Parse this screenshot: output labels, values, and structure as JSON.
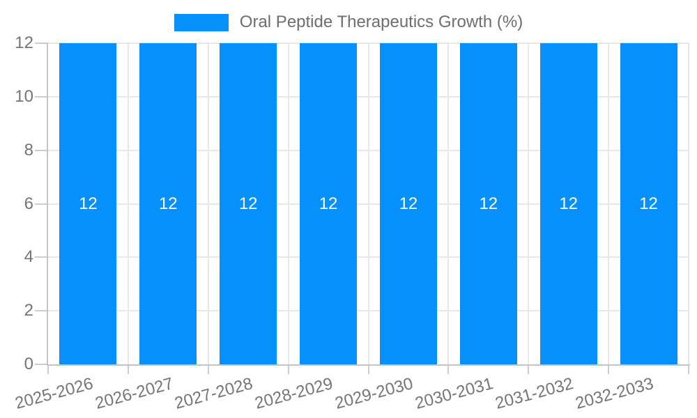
{
  "chart_data": {
    "type": "bar",
    "title": "",
    "xlabel": "",
    "ylabel": "",
    "legend": {
      "label": "Oral Peptide Therapeutics Growth (%)",
      "position": "top"
    },
    "categories": [
      "2025-2026",
      "2026-2027",
      "2027-2028",
      "2028-2029",
      "2029-2030",
      "2030-2031",
      "2031-2032",
      "2032-2033"
    ],
    "values": [
      12,
      12,
      12,
      12,
      12,
      12,
      12,
      12
    ],
    "data_labels": [
      "12",
      "12",
      "12",
      "12",
      "12",
      "12",
      "12",
      "12"
    ],
    "ylim": [
      0,
      12
    ],
    "yticks": [
      0,
      2,
      4,
      6,
      8,
      10,
      12
    ],
    "grid": true,
    "colors": {
      "bar": "#0690fb",
      "grid": "#e8e8e8",
      "axis": "#c4c4c4",
      "tick": "#cccccc",
      "axis_label": "#757575",
      "legend_text": "#6e6e6e",
      "data_label": "#ffffff"
    }
  }
}
